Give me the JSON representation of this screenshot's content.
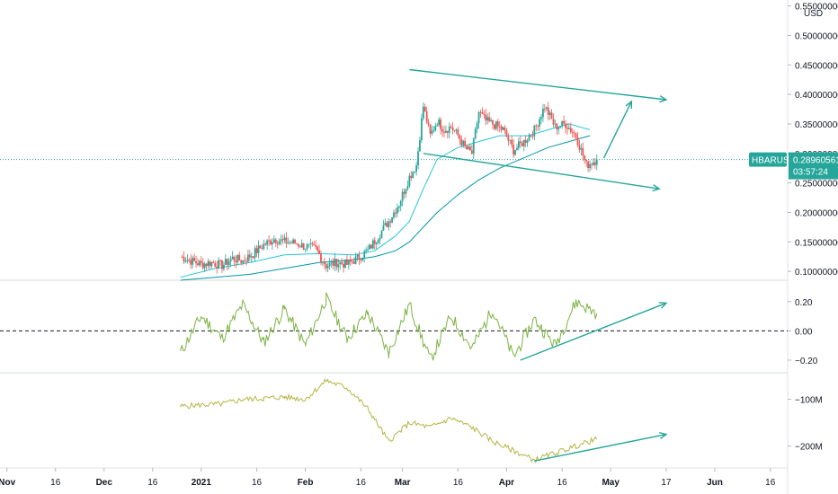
{
  "chart_data": {
    "type": "line",
    "price_pane": {
      "symbol": "HBARUSD",
      "currency": "USD",
      "last_price": "0.28960561",
      "countdown": "03:57:24",
      "y_ticks": [
        "0.10000000",
        "0.15000000",
        "0.20000000",
        "0.25000000",
        "0.30000000",
        "0.35000000",
        "0.40000000",
        "0.45000000",
        "0.50000000",
        "0.55000000"
      ],
      "y_tick_values": [
        0.1,
        0.15,
        0.2,
        0.25,
        0.3,
        0.35,
        0.4,
        0.45,
        0.5,
        0.55
      ],
      "ylim": [
        0.085,
        0.56
      ],
      "candles_series": {
        "x": [
          0,
          3,
          6,
          9,
          12,
          15,
          18,
          21,
          24,
          27,
          30,
          33,
          36,
          39,
          42,
          45,
          48,
          51,
          54,
          57,
          60,
          63,
          66,
          68,
          70,
          72,
          74,
          76,
          78,
          80,
          82,
          84,
          86,
          88,
          90,
          93,
          96,
          99,
          102,
          105,
          108,
          111,
          114,
          117,
          120
        ],
        "close": [
          0.125,
          0.118,
          0.112,
          0.115,
          0.11,
          0.122,
          0.118,
          0.13,
          0.145,
          0.155,
          0.15,
          0.148,
          0.142,
          0.138,
          0.11,
          0.115,
          0.112,
          0.122,
          0.135,
          0.16,
          0.185,
          0.215,
          0.26,
          0.28,
          0.38,
          0.33,
          0.355,
          0.34,
          0.345,
          0.33,
          0.31,
          0.3,
          0.37,
          0.355,
          0.35,
          0.34,
          0.305,
          0.32,
          0.34,
          0.38,
          0.345,
          0.35,
          0.33,
          0.28,
          0.2896
        ],
        "color_up": "#26a69a",
        "color_down": "#ef5350"
      },
      "ma_fast": {
        "x": [
          0,
          10,
          20,
          30,
          40,
          50,
          56,
          62,
          66,
          70,
          74,
          80,
          86,
          92,
          100,
          106,
          112,
          118
        ],
        "values": [
          0.09,
          0.105,
          0.115,
          0.128,
          0.13,
          0.128,
          0.135,
          0.16,
          0.185,
          0.24,
          0.29,
          0.31,
          0.32,
          0.33,
          0.33,
          0.34,
          0.35,
          0.34
        ],
        "color": "#26c6da"
      },
      "ma_slow": {
        "x": [
          0,
          10,
          20,
          30,
          40,
          50,
          56,
          62,
          66,
          70,
          74,
          80,
          86,
          92,
          100,
          106,
          112,
          118
        ],
        "values": [
          0.085,
          0.09,
          0.095,
          0.105,
          0.115,
          0.12,
          0.125,
          0.135,
          0.15,
          0.175,
          0.2,
          0.23,
          0.255,
          0.275,
          0.295,
          0.31,
          0.32,
          0.33
        ],
        "color": "#0097a7"
      },
      "drawings": {
        "channel_top": {
          "x": [
            66,
            140
          ],
          "y": [
            0.442,
            0.391
          ]
        },
        "channel_bottom": {
          "x": [
            70,
            138
          ],
          "y": [
            0.3,
            0.24
          ]
        },
        "projection_up": {
          "x": [
            122,
            130
          ],
          "y": [
            0.292,
            0.388
          ]
        },
        "color": "#26a69a"
      }
    },
    "oscillator_1": {
      "y_ticks": [
        "0.20",
        "0.00",
        "−0.20"
      ],
      "y_tick_values": [
        0.2,
        0.0,
        -0.2
      ],
      "ylim": [
        -0.28,
        0.34
      ],
      "x": [
        0,
        6,
        12,
        18,
        24,
        30,
        36,
        42,
        48,
        54,
        60,
        66,
        72,
        78,
        84,
        90,
        96,
        102,
        108,
        114,
        120
      ],
      "values": [
        -0.15,
        0.1,
        -0.05,
        0.18,
        -0.08,
        0.15,
        -0.1,
        0.22,
        -0.05,
        0.12,
        -0.15,
        0.18,
        -0.2,
        0.1,
        -0.12,
        0.15,
        -0.18,
        0.08,
        -0.1,
        0.2,
        0.12
      ],
      "color": "#7cb342",
      "zero_line": 0.0,
      "trend_arrow": {
        "x": [
          98,
          140
        ],
        "y": [
          -0.2,
          0.19
        ]
      }
    },
    "oscillator_2": {
      "y_ticks": [
        "−100M",
        "−200M"
      ],
      "y_tick_values": [
        -100,
        -200
      ],
      "ylim": [
        -245,
        -45
      ],
      "x": [
        0,
        6,
        12,
        18,
        24,
        30,
        36,
        42,
        48,
        54,
        60,
        66,
        72,
        78,
        84,
        90,
        96,
        102,
        108,
        114,
        120
      ],
      "values": [
        -115,
        -112,
        -110,
        -100,
        -98,
        -95,
        -100,
        -60,
        -75,
        -120,
        -190,
        -150,
        -160,
        -140,
        -160,
        -190,
        -210,
        -230,
        -215,
        -200,
        -185
      ],
      "color": "#b5b546",
      "trend_arrow": {
        "x": [
          102,
          140
        ],
        "y": [
          -232,
          -175
        ]
      }
    },
    "x_axis": {
      "labels": [
        "Nov",
        "16",
        "Dec",
        "16",
        "2021",
        "16",
        "Feb",
        "16",
        "Mar",
        "16",
        "Apr",
        "16",
        "May",
        "17",
        "Jun",
        "16"
      ],
      "bold": [
        true,
        false,
        true,
        false,
        true,
        false,
        true,
        false,
        true,
        false,
        true,
        false,
        true,
        false,
        true,
        false
      ],
      "positions": [
        -50,
        -36,
        -22,
        -8,
        6,
        22,
        36,
        52,
        64,
        80,
        94,
        110,
        124,
        140,
        154,
        170
      ]
    },
    "xlim": [
      -52,
      175
    ]
  }
}
